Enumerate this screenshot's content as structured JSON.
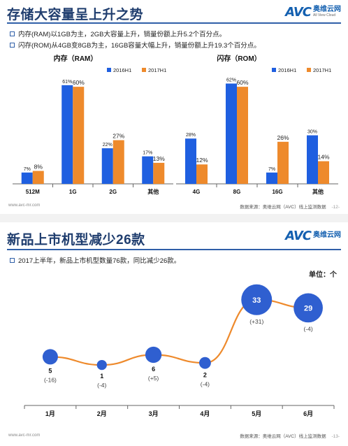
{
  "slide1": {
    "title": "存储大容量呈上升之势",
    "logo": {
      "brand": "AVC",
      "cn": "奥维云网",
      "en": "All View Cloud"
    },
    "bullets": [
      "内存(RAM)以1GB为主，2GB大容量上升，销量份额上升5.2个百分点。",
      "闪存(ROM)从4GB变8GB为主，16GB容量大幅上升，销量份额上升19.3个百分点。"
    ],
    "footer_url": "www.avc-mr.com",
    "footer_source": "数据来源：奥维云网（AVC）线上监测数据",
    "page_number": "-12-"
  },
  "slide2": {
    "title": "新品上市机型减少26款",
    "logo": {
      "brand": "AVC",
      "cn": "奥维云网"
    },
    "bullets": [
      "2017上半年，新品上市机型数量76款，同比减少26款。"
    ],
    "unit_label": "单位：个",
    "footer_url": "www.avc-mr.com",
    "footer_source": "数据来源：奥维云网（AVC）线上监测数据",
    "page_number": "-13-"
  },
  "colors": {
    "series_2016": "#1f5fe0",
    "series_2017": "#ee8a2c",
    "title": "#1f3d6e",
    "rule": "#2f5fa8",
    "bubble": "#2f5fd0",
    "line": "#ee8a2c"
  },
  "chart_data": [
    {
      "type": "bar",
      "title": "内存（RAM）",
      "categories": [
        "512M",
        "1G",
        "2G",
        "其他"
      ],
      "series": [
        {
          "name": "2016H1",
          "values": [
            7,
            61,
            22,
            17
          ]
        },
        {
          "name": "2017H1",
          "values": [
            8,
            60,
            27,
            13
          ]
        }
      ],
      "value_labels": [
        [
          "7%",
          "61%",
          "22%",
          "17%"
        ],
        [
          "8%",
          "60%",
          "27%",
          "13%"
        ]
      ],
      "ylim": [
        0,
        70
      ],
      "legend": "top-right"
    },
    {
      "type": "bar",
      "title": "闪存（ROM）",
      "categories": [
        "4G",
        "8G",
        "16G",
        "其他"
      ],
      "series": [
        {
          "name": "2016H1",
          "values": [
            28,
            62,
            7,
            30
          ]
        },
        {
          "name": "2017H1",
          "values": [
            12,
            60,
            26,
            14
          ]
        }
      ],
      "value_labels": [
        [
          "28%",
          "62%",
          "7%",
          "30%"
        ],
        [
          "12%",
          "60%",
          "26%",
          "14%"
        ]
      ],
      "ylim": [
        0,
        70
      ],
      "legend": "top-right"
    },
    {
      "type": "line",
      "categories": [
        "1月",
        "2月",
        "3月",
        "4月",
        "5月",
        "6月"
      ],
      "values": [
        5,
        1,
        6,
        2,
        33,
        29
      ],
      "value_labels": [
        "5",
        "1",
        "6",
        "2",
        "33",
        "29"
      ],
      "changes": [
        "(-16)",
        "(-4)",
        "(+5)",
        "(-4)",
        "(+31)",
        "(-4)"
      ],
      "ylim": [
        0,
        36
      ]
    }
  ]
}
